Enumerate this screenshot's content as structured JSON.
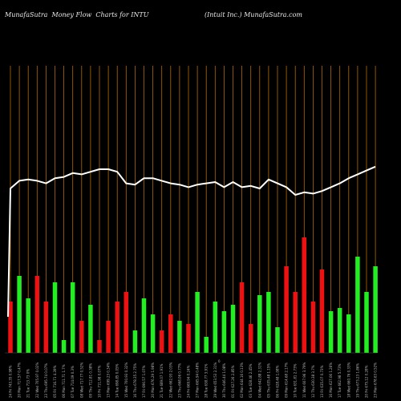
{
  "header": {
    "left_title": "MunafaSutra  Money Flow  Charts for INTU",
    "right_title": "(Intuit Inc.) MunafaSutra.com"
  },
  "colors": {
    "up": "#22ee22",
    "down": "#ee1111",
    "gridline": "#b36a00",
    "flow_line": "#ffffff"
  },
  "chart_data": {
    "type": "bar",
    "title": "MunafaSutra  Money Flow  Charts for INTU",
    "subtitle": "(Intuit Inc.) MunafaSutra.com",
    "axis_label": "0",
    "categories": [
      "24 Fri 743.35 0.98%",
      "20 Mon 717.57 0.47%",
      "21 Tue 713.73 0%",
      "22 Wed 705.97 0.02%",
      "23 Thu 695.74 0.07%",
      "05 Fri 716.71 4.39%",
      "06 Mon 711.71 1.7%",
      "07 Tue 714.09 0.3%",
      "08 Wed 717.77 0.52%",
      "09 Thu 712.81 0.38%",
      "10 Fri 711.98 0.07%",
      "13 Mon 699.23 0.34%",
      "14 Tue 698.85 0.05%",
      "15 Wed 700.93 0.32%",
      "16 Thu 678.35 2.75%",
      "17 Fri 690.57 1.07%",
      "20 Mon 676.29 1.98%",
      "21 Tue 689.07 1.91%",
      "22 Wed 662.93 2.03%",
      "23 Thu 668.06 0.77%",
      "24 Fri 669.94 0.24%",
      "27 Mon 665.94 0.48%",
      "28 Tue 638.77 3.91%",
      "29 Wed 653.53 2.31%",
      "30 Thu 646.44 1.08%",
      "01 Fri 627.26 2.85%",
      "02 Mon 644.16 0.13%",
      "03 Tue 628.46 2.45%",
      "04 Wed 642.88 2.31%",
      "05 Thu 635.48 1.15%",
      "06 Fri 628.48 1.08%",
      "09 Mon 614.68 2.17%",
      "10 Tue 631.81 2.73%",
      "11 Wed 607.96 3.79%",
      "12 Thu 630.38 3.7%",
      "13 Fri 635.07 0.73%",
      "16 Mon 627.06 1.26%",
      "17 Tue 662.98 5.73%",
      "18 Wed 660.76 0.33%",
      "19 Thu 673.23 1.86%",
      "20 Fri 675.12 0.28%",
      "23 Mon 678.63 0.52%"
    ],
    "series": [
      {
        "values": [
          80,
          120,
          85,
          120,
          80,
          110,
          20,
          110,
          50,
          75,
          20,
          50,
          80,
          95,
          35,
          85,
          60,
          35,
          60,
          50,
          45,
          95,
          25,
          80,
          65,
          75,
          110,
          45,
          90,
          95,
          40,
          135,
          95,
          180,
          80,
          130,
          65,
          70,
          60,
          150,
          95,
          135
        ],
        "direction": [
          "down",
          "up",
          "up",
          "down",
          "down",
          "up",
          "up",
          "up",
          "down",
          "up",
          "down",
          "down",
          "down",
          "down",
          "up",
          "up",
          "up",
          "down",
          "down",
          "up",
          "down",
          "up",
          "up",
          "up",
          "up",
          "up",
          "down",
          "down",
          "up",
          "up",
          "up",
          "down",
          "down",
          "down",
          "down",
          "down",
          "up",
          "up",
          "up",
          "up",
          "up",
          "up"
        ]
      }
    ],
    "line_values": [
      100,
      106,
      107,
      106,
      104,
      108,
      109,
      112,
      111,
      113,
      115,
      115,
      113,
      104,
      103,
      108,
      108,
      106,
      104,
      103,
      101,
      103,
      104,
      105,
      101,
      105,
      101,
      102,
      100,
      107,
      104,
      101,
      95,
      97,
      96,
      98,
      101,
      104,
      108,
      111,
      114,
      117
    ],
    "line_start": 0
  }
}
